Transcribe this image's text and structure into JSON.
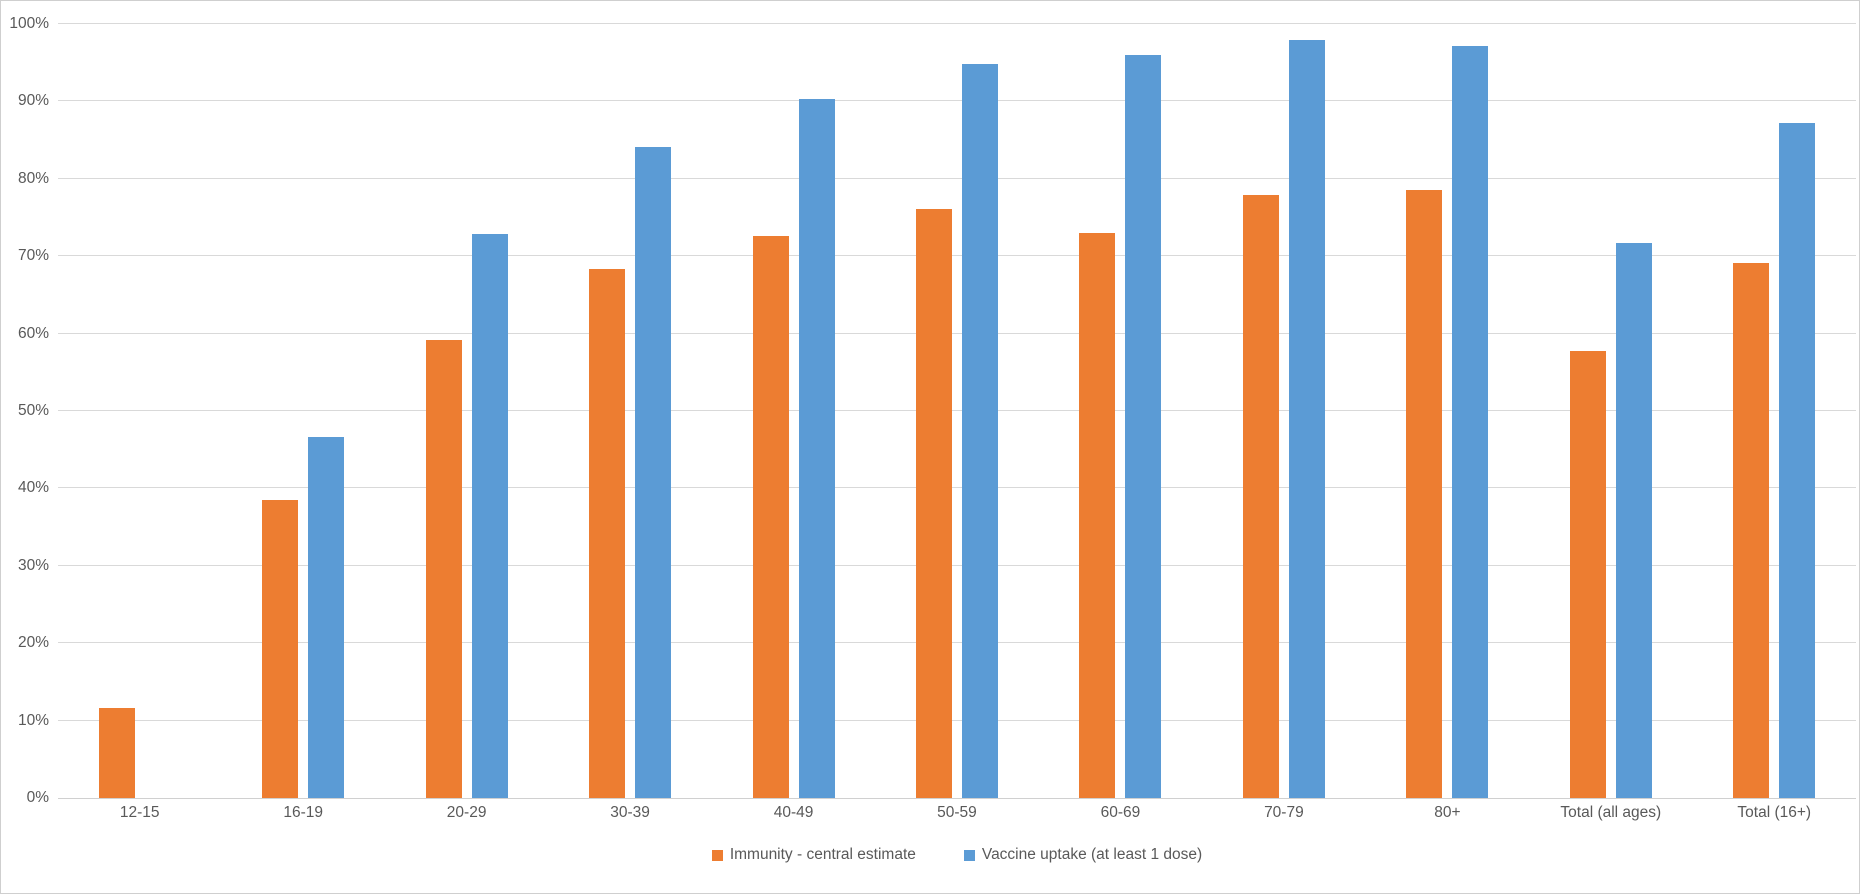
{
  "chart_data": {
    "type": "bar",
    "title": "",
    "categories": [
      "12-15",
      "16-19",
      "20-29",
      "30-39",
      "40-49",
      "50-59",
      "60-69",
      "70-79",
      "80+",
      "Total (all ages)",
      "Total (16+)"
    ],
    "series": [
      {
        "name": "Immunity - central estimate",
        "color": "#ED7D31",
        "values": [
          11.6,
          38.5,
          59.2,
          68.3,
          72.6,
          76.1,
          73.0,
          77.9,
          78.6,
          57.7,
          69.1
        ]
      },
      {
        "name": "Vaccine uptake (at least 1 dose)",
        "color": "#5B9BD5",
        "values": [
          null,
          46.6,
          72.9,
          84.1,
          90.3,
          94.8,
          96.0,
          97.9,
          97.2,
          71.7,
          87.2
        ]
      }
    ],
    "ylim": [
      0,
      100
    ],
    "ytick_step": 10,
    "ytick_labels": [
      "0%",
      "10%",
      "20%",
      "30%",
      "40%",
      "50%",
      "60%",
      "70%",
      "80%",
      "90%",
      "100%"
    ],
    "xlabel": "",
    "ylabel": "",
    "grid": true,
    "legend_position": "bottom",
    "colors": {
      "gridline": "#D9D9D9",
      "tick_text": "#595959",
      "background": "#FFFFFF"
    }
  }
}
